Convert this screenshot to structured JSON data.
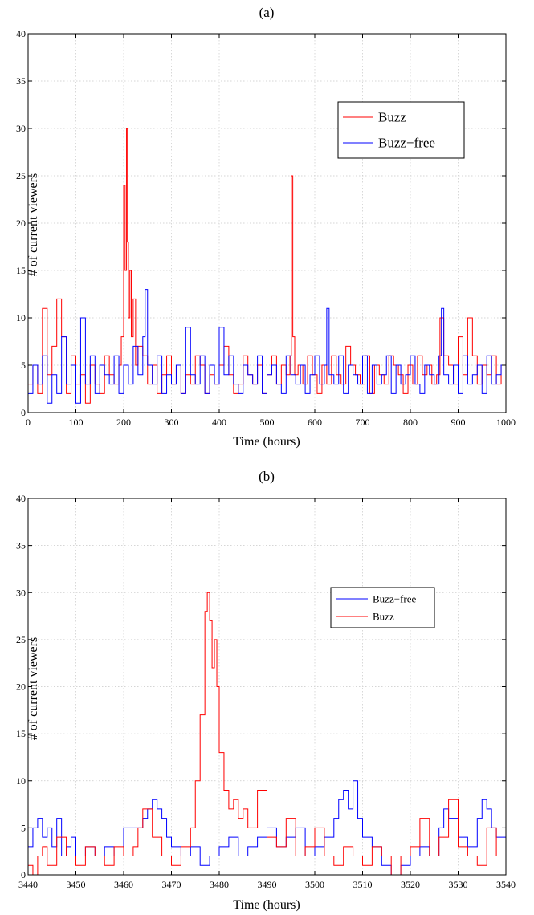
{
  "colors": {
    "Buzz": "#ff0000",
    "Buzz-free": "#0000ff"
  },
  "chart_data": [
    {
      "panel": "(a)",
      "type": "line",
      "xlabel": "Time (hours)",
      "ylabel": "# of current viewers",
      "xlim": [
        0,
        1000
      ],
      "ylim": [
        0,
        40
      ],
      "xticks": [
        0,
        100,
        200,
        300,
        400,
        500,
        600,
        700,
        800,
        900,
        1000
      ],
      "yticks": [
        0,
        5,
        10,
        15,
        20,
        25,
        30,
        35,
        40
      ],
      "grid": true,
      "legend": {
        "position": "upper-right",
        "entries": [
          "Buzz",
          "Buzz-free"
        ]
      },
      "series": [
        {
          "name": "Buzz",
          "x": [
            0,
            10,
            20,
            30,
            40,
            50,
            60,
            65,
            70,
            80,
            90,
            100,
            110,
            120,
            130,
            140,
            150,
            160,
            170,
            180,
            190,
            195,
            200,
            203,
            206,
            208,
            210,
            213,
            216,
            220,
            225,
            230,
            240,
            250,
            260,
            270,
            280,
            290,
            300,
            310,
            320,
            330,
            340,
            350,
            360,
            370,
            380,
            390,
            400,
            410,
            420,
            430,
            440,
            450,
            460,
            470,
            480,
            490,
            500,
            510,
            520,
            530,
            540,
            548,
            551,
            554,
            558,
            565,
            575,
            585,
            595,
            605,
            615,
            625,
            635,
            645,
            655,
            665,
            675,
            685,
            695,
            705,
            715,
            725,
            735,
            745,
            755,
            765,
            775,
            785,
            795,
            805,
            815,
            825,
            835,
            845,
            855,
            862,
            870,
            880,
            890,
            900,
            910,
            920,
            930,
            940,
            950,
            960,
            970,
            980,
            990,
            1000
          ],
          "y": [
            3,
            5,
            2,
            11,
            4,
            7,
            12,
            12,
            8,
            2,
            6,
            3,
            4,
            1,
            5,
            3,
            2,
            6,
            4,
            3,
            5,
            8,
            24,
            15,
            30,
            18,
            10,
            15,
            8,
            12,
            5,
            7,
            6,
            3,
            5,
            2,
            4,
            6,
            3,
            5,
            2,
            4,
            3,
            6,
            5,
            2,
            4,
            3,
            5,
            7,
            4,
            2,
            3,
            6,
            4,
            3,
            5,
            2,
            4,
            6,
            3,
            5,
            4,
            6,
            25,
            8,
            4,
            5,
            3,
            6,
            4,
            2,
            5,
            3,
            6,
            4,
            3,
            7,
            5,
            4,
            3,
            6,
            2,
            5,
            4,
            3,
            6,
            5,
            4,
            2,
            5,
            3,
            6,
            4,
            5,
            3,
            4,
            10,
            6,
            5,
            3,
            8,
            4,
            10,
            6,
            3,
            5,
            4,
            6,
            3,
            5,
            4
          ]
        },
        {
          "name": "Buzz-free",
          "x": [
            0,
            10,
            20,
            30,
            40,
            50,
            60,
            70,
            80,
            90,
            100,
            110,
            120,
            130,
            140,
            150,
            160,
            170,
            180,
            190,
            200,
            210,
            220,
            230,
            240,
            245,
            250,
            260,
            270,
            280,
            290,
            300,
            310,
            320,
            330,
            340,
            350,
            360,
            370,
            380,
            390,
            400,
            410,
            420,
            430,
            440,
            450,
            460,
            470,
            480,
            490,
            500,
            510,
            520,
            530,
            540,
            550,
            560,
            570,
            580,
            590,
            600,
            610,
            620,
            625,
            630,
            640,
            650,
            660,
            670,
            680,
            690,
            700,
            710,
            720,
            730,
            740,
            750,
            760,
            770,
            780,
            790,
            800,
            810,
            820,
            830,
            840,
            850,
            860,
            865,
            870,
            880,
            890,
            900,
            910,
            920,
            930,
            940,
            950,
            960,
            970,
            980,
            990,
            1000
          ],
          "y": [
            2,
            5,
            3,
            6,
            1,
            4,
            2,
            8,
            3,
            5,
            1,
            10,
            3,
            6,
            2,
            5,
            4,
            3,
            6,
            2,
            5,
            3,
            7,
            4,
            8,
            13,
            5,
            3,
            6,
            2,
            4,
            3,
            5,
            2,
            9,
            4,
            3,
            6,
            2,
            5,
            3,
            9,
            4,
            6,
            3,
            2,
            5,
            4,
            3,
            6,
            2,
            4,
            5,
            3,
            2,
            6,
            4,
            3,
            5,
            2,
            4,
            6,
            3,
            5,
            11,
            4,
            3,
            6,
            2,
            5,
            4,
            3,
            6,
            2,
            5,
            3,
            4,
            6,
            2,
            5,
            3,
            4,
            6,
            3,
            2,
            5,
            4,
            3,
            6,
            11,
            4,
            3,
            5,
            2,
            6,
            3,
            4,
            5,
            2,
            6,
            3,
            4,
            5,
            7
          ]
        }
      ]
    },
    {
      "panel": "(b)",
      "type": "line",
      "xlabel": "Time (hours)",
      "ylabel": "# of current viewers",
      "xlim": [
        3440,
        3540
      ],
      "ylim": [
        0,
        40
      ],
      "xticks": [
        3440,
        3450,
        3460,
        3470,
        3480,
        3490,
        3500,
        3510,
        3520,
        3530,
        3540
      ],
      "yticks": [
        0,
        5,
        10,
        15,
        20,
        25,
        30,
        35,
        40
      ],
      "grid": true,
      "legend": {
        "position": "right",
        "entries": [
          "Buzz-free",
          "Buzz"
        ]
      },
      "series": [
        {
          "name": "Buzz-free",
          "x": [
            3440,
            3441,
            3442,
            3443,
            3444,
            3445,
            3446,
            3447,
            3448,
            3449,
            3450,
            3452,
            3454,
            3456,
            3458,
            3460,
            3462,
            3464,
            3465,
            3466,
            3467,
            3468,
            3469,
            3470,
            3472,
            3474,
            3476,
            3478,
            3480,
            3482,
            3484,
            3486,
            3488,
            3490,
            3492,
            3494,
            3496,
            3498,
            3500,
            3502,
            3504,
            3505,
            3506,
            3507,
            3508,
            3509,
            3510,
            3512,
            3514,
            3516,
            3518,
            3520,
            3522,
            3524,
            3526,
            3527,
            3528,
            3530,
            3532,
            3534,
            3535,
            3536,
            3537,
            3538,
            3540
          ],
          "y": [
            3,
            5,
            6,
            4,
            5,
            3,
            6,
            2,
            3,
            4,
            2,
            3,
            2,
            3,
            2,
            5,
            5,
            6,
            7,
            8,
            7,
            6,
            4,
            3,
            2,
            3,
            1,
            2,
            3,
            4,
            2,
            3,
            4,
            5,
            3,
            4,
            5,
            2,
            3,
            4,
            6,
            8,
            9,
            7,
            10,
            6,
            4,
            3,
            1,
            0,
            1,
            2,
            3,
            2,
            5,
            7,
            6,
            4,
            3,
            6,
            8,
            7,
            5,
            4,
            3
          ]
        },
        {
          "name": "Buzz",
          "x": [
            3440,
            3441,
            3442,
            3443,
            3444,
            3446,
            3448,
            3450,
            3452,
            3454,
            3456,
            3458,
            3460,
            3462,
            3463,
            3464,
            3466,
            3468,
            3470,
            3472,
            3474,
            3475,
            3476,
            3477,
            3477.5,
            3478,
            3478.5,
            3479,
            3479.5,
            3480,
            3481,
            3482,
            3483,
            3484,
            3485,
            3486,
            3488,
            3490,
            3492,
            3494,
            3496,
            3498,
            3500,
            3502,
            3504,
            3506,
            3508,
            3510,
            3512,
            3514,
            3516,
            3518,
            3520,
            3522,
            3524,
            3526,
            3528,
            3530,
            3532,
            3534,
            3536,
            3538,
            3540
          ],
          "y": [
            1,
            0,
            2,
            3,
            1,
            4,
            2,
            1,
            3,
            2,
            1,
            3,
            2,
            3,
            5,
            7,
            4,
            2,
            1,
            3,
            5,
            10,
            17,
            28,
            30,
            27,
            22,
            25,
            20,
            13,
            9,
            7,
            8,
            6,
            7,
            5,
            9,
            4,
            3,
            6,
            2,
            3,
            5,
            2,
            1,
            3,
            2,
            1,
            3,
            2,
            0,
            2,
            3,
            6,
            2,
            4,
            8,
            3,
            2,
            1,
            5,
            2,
            1
          ]
        }
      ]
    }
  ]
}
